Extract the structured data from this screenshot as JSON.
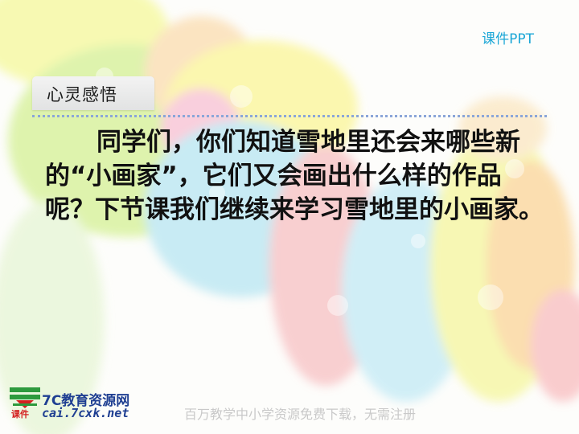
{
  "header": {
    "tag": "课件PPT"
  },
  "section": {
    "title": "心灵感悟"
  },
  "content": {
    "paragraph": "同学们，你们知道雪地里还会来哪些新的“小画家”，它们又会画出什么样的作品呢？下节课我们继续来学习雪地里的小画家。"
  },
  "footer": {
    "logo_caption": "课件",
    "brand_name": "7C教育资源网",
    "brand_url": "cai.7cxk.net",
    "slogan": "百万教学中小学资源免费下载，无需注册"
  },
  "colors": {
    "tag": "#1aa6d6",
    "brand": "#1f3f92",
    "logo_accent": "#d42020",
    "rule": "#8ba6d8"
  },
  "icons": {
    "logo": "download-arrow-icon"
  }
}
